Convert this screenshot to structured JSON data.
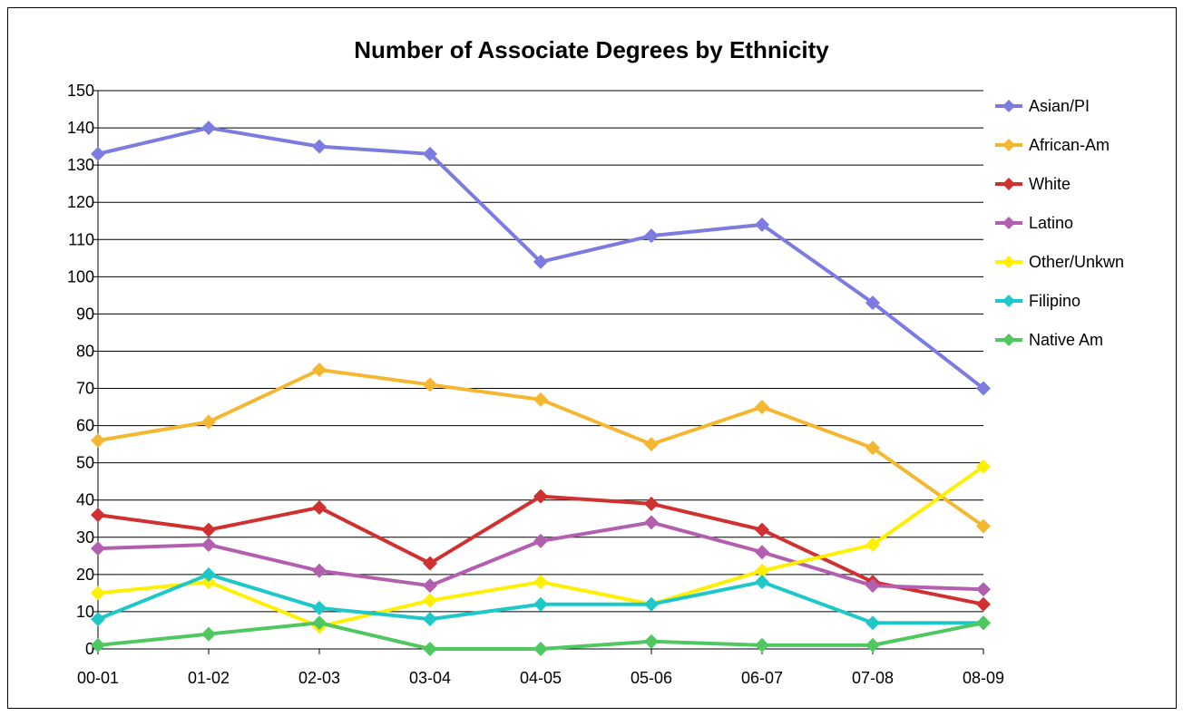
{
  "chart_data": {
    "type": "line",
    "title": "Number of Associate Degrees by Ethnicity",
    "xlabel": "",
    "ylabel": "",
    "categories": [
      "00-01",
      "01-02",
      "02-03",
      "03-04",
      "04-05",
      "05-06",
      "06-07",
      "07-08",
      "08-09"
    ],
    "ylim": [
      0,
      150
    ],
    "yticks": [
      0,
      10,
      20,
      30,
      40,
      50,
      60,
      70,
      80,
      90,
      100,
      110,
      120,
      130,
      140,
      150
    ],
    "grid": true,
    "legend_position": "right",
    "series": [
      {
        "name": "Asian/PI",
        "color": "#7b7be0",
        "values": [
          133,
          140,
          135,
          133,
          104,
          111,
          114,
          93,
          70
        ]
      },
      {
        "name": "African-Am",
        "color": "#f4b732",
        "values": [
          56,
          61,
          75,
          71,
          67,
          55,
          65,
          54,
          33
        ]
      },
      {
        "name": "White",
        "color": "#d03030",
        "values": [
          36,
          32,
          38,
          23,
          41,
          39,
          32,
          18,
          12
        ]
      },
      {
        "name": "Latino",
        "color": "#b25fb0",
        "values": [
          27,
          28,
          21,
          17,
          29,
          34,
          26,
          17,
          16
        ]
      },
      {
        "name": "Other/Unkwn",
        "color": "#ffef00",
        "values": [
          15,
          18,
          6,
          13,
          18,
          12,
          21,
          28,
          49
        ]
      },
      {
        "name": "Filipino",
        "color": "#1fc8c8",
        "values": [
          8,
          20,
          11,
          8,
          12,
          12,
          18,
          7,
          7
        ]
      },
      {
        "name": "Native Am",
        "color": "#50c860",
        "values": [
          1,
          4,
          7,
          0,
          0,
          2,
          1,
          1,
          7
        ]
      }
    ]
  }
}
